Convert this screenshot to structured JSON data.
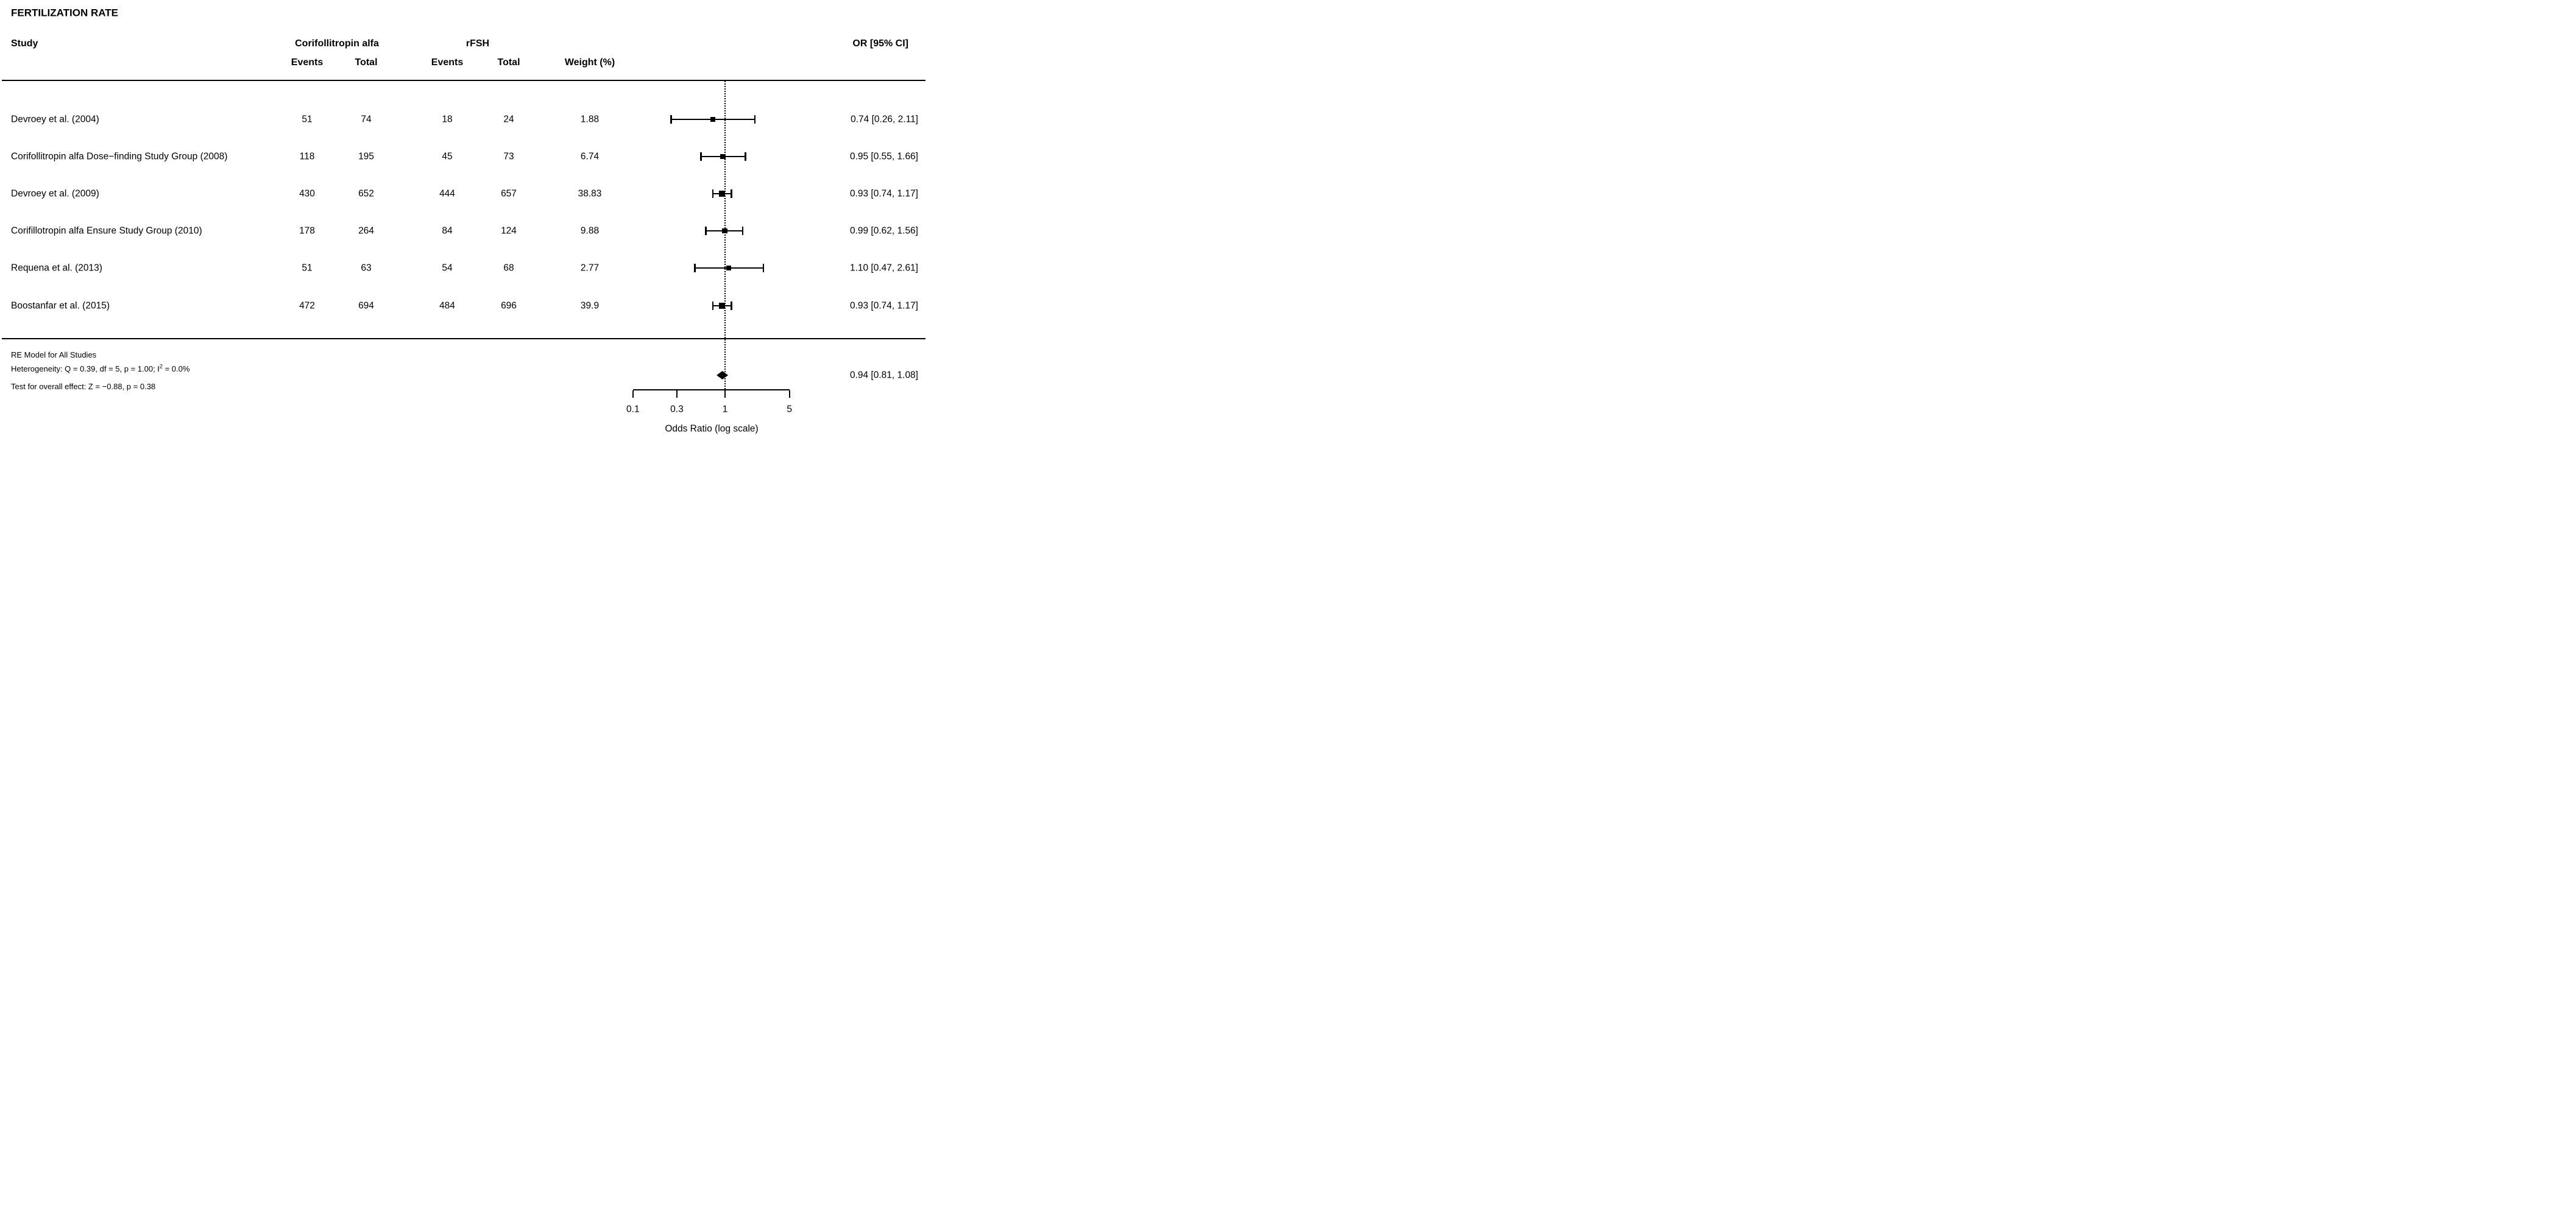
{
  "title": "FERTILIZATION RATE",
  "header": {
    "study": "Study",
    "group1": "Corifollitropin alfa",
    "group2": "rFSH",
    "events1": "Events",
    "total1": "Total",
    "events2": "Events",
    "total2": "Total",
    "weight": "Weight (%)",
    "or": "OR [95% CI]"
  },
  "chart_data": {
    "type": "scatter",
    "subtype": "forest-plot",
    "x_scale": "log10",
    "xlabel": "Odds Ratio (log scale)",
    "x_ticks": [
      0.1,
      0.3,
      1,
      5
    ],
    "x_tick_labels": [
      "0.1",
      "0.3",
      "1",
      "5"
    ],
    "reference_line": 1,
    "studies": [
      {
        "name": "Devroey et al. (2004)",
        "events_treatment": "51",
        "total_treatment": "74",
        "events_control": "18",
        "total_control": "24",
        "weight_pct": "1.88",
        "weight": 1.88,
        "or": 0.74,
        "ci_low": 0.26,
        "ci_high": 2.11,
        "or_label": "0.74 [0.26, 2.11]"
      },
      {
        "name": "Corifollitropin alfa Dose−finding Study Group (2008)",
        "events_treatment": "118",
        "total_treatment": "195",
        "events_control": "45",
        "total_control": "73",
        "weight_pct": "6.74",
        "weight": 6.74,
        "or": 0.95,
        "ci_low": 0.55,
        "ci_high": 1.66,
        "or_label": "0.95 [0.55, 1.66]"
      },
      {
        "name": "Devroey et al. (2009)",
        "events_treatment": "430",
        "total_treatment": "652",
        "events_control": "444",
        "total_control": "657",
        "weight_pct": "38.83",
        "weight": 38.83,
        "or": 0.93,
        "ci_low": 0.74,
        "ci_high": 1.17,
        "or_label": "0.93 [0.74, 1.17]"
      },
      {
        "name": "Corifillotropin alfa Ensure Study Group (2010)",
        "events_treatment": "178",
        "total_treatment": "264",
        "events_control": "84",
        "total_control": "124",
        "weight_pct": "9.88",
        "weight": 9.88,
        "or": 0.99,
        "ci_low": 0.62,
        "ci_high": 1.56,
        "or_label": "0.99 [0.62, 1.56]"
      },
      {
        "name": "Requena et al. (2013)",
        "events_treatment": "51",
        "total_treatment": "63",
        "events_control": "54",
        "total_control": "68",
        "weight_pct": "2.77",
        "weight": 2.77,
        "or": 1.1,
        "ci_low": 0.47,
        "ci_high": 2.61,
        "or_label": "1.10 [0.47, 2.61]"
      },
      {
        "name": "Boostanfar et al. (2015)",
        "events_treatment": "472",
        "total_treatment": "694",
        "events_control": "484",
        "total_control": "696",
        "weight_pct": "39.9",
        "weight": 39.9,
        "or": 0.93,
        "ci_low": 0.74,
        "ci_high": 1.17,
        "or_label": "0.93 [0.74, 1.17]"
      }
    ],
    "summary": {
      "model_label": "RE Model for All Studies",
      "heterogeneity_prefix": "Heterogeneity: Q = 0.39, df = 5, p = 1.00; I",
      "heterogeneity_sup": "2",
      "heterogeneity_suffix": " = 0.0%",
      "overall_effect": "Test for overall effect: Z = −0.88, p = 0.38",
      "or": 0.94,
      "ci_low": 0.81,
      "ci_high": 1.08,
      "or_label": "0.94 [0.81, 1.08]"
    }
  },
  "colors": {
    "ink": "#000000",
    "background": "#ffffff"
  }
}
